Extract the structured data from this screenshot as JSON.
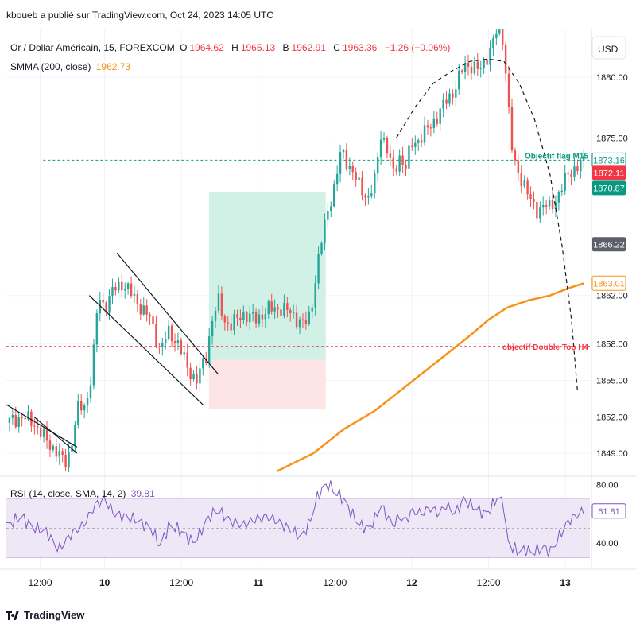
{
  "attribution": "kboueb a publié sur TradingView.com, Oct 24, 2023 14:05 UTC",
  "legend": {
    "symbol": "Or / Dollar Américain, 15, FOREXCOM",
    "o_label": "O",
    "o_value": "1964.62",
    "h_label": "H",
    "h_value": "1965.13",
    "l_label": "B",
    "l_value": "1962.91",
    "c_label": "C",
    "c_value": "1963.36",
    "change": "−1.26 (−0.06%)",
    "smma_label": "SMMA (200, close)",
    "smma_value": "1962.73",
    "rsi_label": "RSI (14, close, SMA, 14, 2)",
    "rsi_value": "39.81"
  },
  "currency": "USD",
  "footer": {
    "brand": "TradingView"
  },
  "colors": {
    "up": "#26a69a",
    "down": "#ef5350",
    "smma": "#f7931a",
    "rsi": "#7e57c2",
    "rsi_band": "#ede7f6",
    "tp_zone": "#d1f0e6",
    "sl_zone": "#fde5e5",
    "grid": "#f0f3fa",
    "teal_level": "#089981",
    "red_level": "#f23645"
  },
  "chart_data": [
    {
      "type": "candlestick",
      "title": "Or / Dollar Américain, 15, FOREXCOM",
      "ylim": [
        1847.3,
        1884.0
      ],
      "y_ticks": [
        "1880.00",
        "1875.00",
        "1862.00",
        "1858.00",
        "1855.00",
        "1852.00",
        "1849.00"
      ],
      "y_tick_values": [
        1880,
        1875,
        1862,
        1858,
        1855,
        1852,
        1849
      ],
      "x_ticks": [
        "12:00",
        "10",
        "12:00",
        "11",
        "12:00",
        "12",
        "12:00",
        "13"
      ],
      "x_tick_values": [
        6,
        27,
        52,
        77,
        102,
        127,
        152,
        177
      ],
      "x_range": [
        -5,
        185
      ],
      "price_path": [
        [
          -5,
          1851.5
        ],
        [
          0,
          1852.0
        ],
        [
          4,
          1851.5
        ],
        [
          8,
          1850.0
        ],
        [
          12,
          1849.0
        ],
        [
          14,
          1848.0
        ],
        [
          16,
          1849.5
        ],
        [
          18,
          1852.5
        ],
        [
          21,
          1853.0
        ],
        [
          23,
          1856.0
        ],
        [
          25,
          1862.0
        ],
        [
          27,
          1861.0
        ],
        [
          30,
          1862.5
        ],
        [
          33,
          1863.0
        ],
        [
          36,
          1862.0
        ],
        [
          39,
          1861.0
        ],
        [
          42,
          1860.0
        ],
        [
          45,
          1857.5
        ],
        [
          48,
          1859.0
        ],
        [
          51,
          1858.0
        ],
        [
          54,
          1856.0
        ],
        [
          57,
          1855.0
        ],
        [
          60,
          1857.0
        ],
        [
          62,
          1860.0
        ],
        [
          64,
          1861.5
        ],
        [
          66,
          1860.0
        ],
        [
          68,
          1859.5
        ],
        [
          72,
          1860.5
        ],
        [
          76,
          1860.0
        ],
        [
          80,
          1860.8
        ],
        [
          84,
          1861.0
        ],
        [
          88,
          1860.5
        ],
        [
          92,
          1859.5
        ],
        [
          94,
          1860.5
        ],
        [
          96,
          1864.0
        ],
        [
          98,
          1867.0
        ],
        [
          100,
          1869.5
        ],
        [
          102,
          1871.0
        ],
        [
          104,
          1874.0
        ],
        [
          106,
          1873.0
        ],
        [
          108,
          1872.0
        ],
        [
          110,
          1871.0
        ],
        [
          113,
          1870.0
        ],
        [
          115,
          1871.5
        ],
        [
          117,
          1875.5
        ],
        [
          119,
          1874.0
        ],
        [
          121,
          1872.0
        ],
        [
          123,
          1873.5
        ],
        [
          125,
          1872.5
        ],
        [
          127,
          1874.5
        ],
        [
          130,
          1875.0
        ],
        [
          133,
          1876.0
        ],
        [
          136,
          1877.0
        ],
        [
          138,
          1878.0
        ],
        [
          141,
          1879.0
        ],
        [
          144,
          1881.0
        ],
        [
          146,
          1881.0
        ],
        [
          149,
          1880.5
        ],
        [
          151,
          1881.5
        ],
        [
          153,
          1882.5
        ],
        [
          155,
          1884.0
        ],
        [
          157,
          1883.0
        ],
        [
          158,
          1879.0
        ],
        [
          159,
          1876.0
        ],
        [
          160,
          1873.0
        ],
        [
          162,
          1872.0
        ],
        [
          164,
          1871.0
        ],
        [
          166,
          1869.5
        ],
        [
          168,
          1869.0
        ],
        [
          170,
          1869.5
        ],
        [
          172,
          1869.2
        ],
        [
          174,
          1870.0
        ],
        [
          176,
          1871.0
        ],
        [
          178,
          1872.0
        ],
        [
          180,
          1872.5
        ],
        [
          183,
          1873.0
        ]
      ],
      "smma": [
        [
          83,
          1847.5
        ],
        [
          95,
          1849.0
        ],
        [
          105,
          1851.0
        ],
        [
          115,
          1852.5
        ],
        [
          125,
          1854.5
        ],
        [
          135,
          1856.5
        ],
        [
          145,
          1858.5
        ],
        [
          152,
          1860.0
        ],
        [
          158,
          1861.0
        ],
        [
          165,
          1861.6
        ],
        [
          172,
          1862.0
        ],
        [
          178,
          1862.6
        ],
        [
          183,
          1863.0
        ]
      ],
      "channel_upper": [
        [
          31,
          1865.5
        ],
        [
          64,
          1855.5
        ]
      ],
      "channel_lower": [
        [
          22,
          1862.0
        ],
        [
          59,
          1853.0
        ]
      ],
      "trend_upper": [
        [
          -5,
          1853.0
        ],
        [
          18,
          1849.5
        ]
      ],
      "trend_lower": [
        [
          4,
          1852.0
        ],
        [
          18,
          1849.0
        ]
      ],
      "double_top_curve": [
        [
          122,
          1875.0
        ],
        [
          128,
          1877.5
        ],
        [
          134,
          1879.5
        ],
        [
          140,
          1880.5
        ],
        [
          146,
          1881.3
        ],
        [
          152,
          1881.5
        ],
        [
          157,
          1881.3
        ],
        [
          162,
          1879.5
        ],
        [
          167,
          1876.5
        ],
        [
          172,
          1872.0
        ],
        [
          176,
          1866.0
        ],
        [
          179,
          1860.0
        ],
        [
          181,
          1854.0
        ]
      ],
      "tp_zone": {
        "x": [
          61,
          99
        ],
        "y": [
          1856.7,
          1870.5
        ]
      },
      "sl_zone": {
        "x": [
          61,
          99
        ],
        "y": [
          1852.6,
          1856.7
        ]
      },
      "levels": [
        {
          "name": "objectif-flag-m15",
          "value": 1873.16,
          "label": "Objectif flag M15",
          "badge": "1873.16"
        },
        {
          "name": "objectif-double-top-h4",
          "value": 1857.8,
          "label": "objectif Double Top H4"
        }
      ],
      "price_badges": [
        {
          "name": "price-badge-1873",
          "value": 1873.16,
          "text": "1873.16",
          "style": "outline-teal"
        },
        {
          "name": "price-badge-1872",
          "value": 1872.11,
          "text": "1872.11",
          "style": "red"
        },
        {
          "name": "price-badge-1870",
          "value": 1870.87,
          "text": "1870.87",
          "style": "teal"
        },
        {
          "name": "price-badge-1866",
          "value": 1866.22,
          "text": "1866.22",
          "style": "gray"
        },
        {
          "name": "price-badge-1863",
          "value": 1863.01,
          "text": "1863.01",
          "style": "outline-orange"
        }
      ]
    },
    {
      "type": "line",
      "title": "RSI (14, close, SMA, 14, 2)",
      "ylim": [
        22,
        84
      ],
      "y_ticks": [
        "80.00",
        "40.00"
      ],
      "y_tick_values": [
        80,
        40
      ],
      "band": [
        30,
        70
      ],
      "midline": 50,
      "current": {
        "value": 61.81,
        "text": "61.81"
      },
      "rsi_path": [
        [
          -5,
          52
        ],
        [
          0,
          58
        ],
        [
          4,
          50
        ],
        [
          8,
          48
        ],
        [
          12,
          35
        ],
        [
          16,
          46
        ],
        [
          20,
          52
        ],
        [
          24,
          66
        ],
        [
          27,
          70
        ],
        [
          30,
          60
        ],
        [
          34,
          58
        ],
        [
          38,
          55
        ],
        [
          42,
          50
        ],
        [
          45,
          38
        ],
        [
          48,
          52
        ],
        [
          52,
          48
        ],
        [
          56,
          40
        ],
        [
          58,
          46
        ],
        [
          60,
          55
        ],
        [
          62,
          60
        ],
        [
          64,
          62
        ],
        [
          68,
          55
        ],
        [
          72,
          52
        ],
        [
          76,
          56
        ],
        [
          80,
          58
        ],
        [
          84,
          54
        ],
        [
          88,
          48
        ],
        [
          91,
          44
        ],
        [
          94,
          55
        ],
        [
          96,
          70
        ],
        [
          98,
          78
        ],
        [
          100,
          80
        ],
        [
          102,
          74
        ],
        [
          104,
          72
        ],
        [
          106,
          66
        ],
        [
          108,
          58
        ],
        [
          110,
          52
        ],
        [
          113,
          50
        ],
        [
          115,
          56
        ],
        [
          117,
          66
        ],
        [
          119,
          58
        ],
        [
          121,
          52
        ],
        [
          123,
          58
        ],
        [
          125,
          55
        ],
        [
          127,
          62
        ],
        [
          130,
          60
        ],
        [
          133,
          64
        ],
        [
          136,
          60
        ],
        [
          138,
          66
        ],
        [
          141,
          60
        ],
        [
          144,
          70
        ],
        [
          146,
          66
        ],
        [
          149,
          62
        ],
        [
          151,
          60
        ],
        [
          153,
          64
        ],
        [
          155,
          72
        ],
        [
          157,
          66
        ],
        [
          158,
          42
        ],
        [
          160,
          36
        ],
        [
          162,
          34
        ],
        [
          164,
          36
        ],
        [
          166,
          33
        ],
        [
          168,
          35
        ],
        [
          170,
          37
        ],
        [
          172,
          34
        ],
        [
          174,
          40
        ],
        [
          176,
          48
        ],
        [
          178,
          55
        ],
        [
          180,
          58
        ],
        [
          183,
          62
        ]
      ]
    }
  ]
}
